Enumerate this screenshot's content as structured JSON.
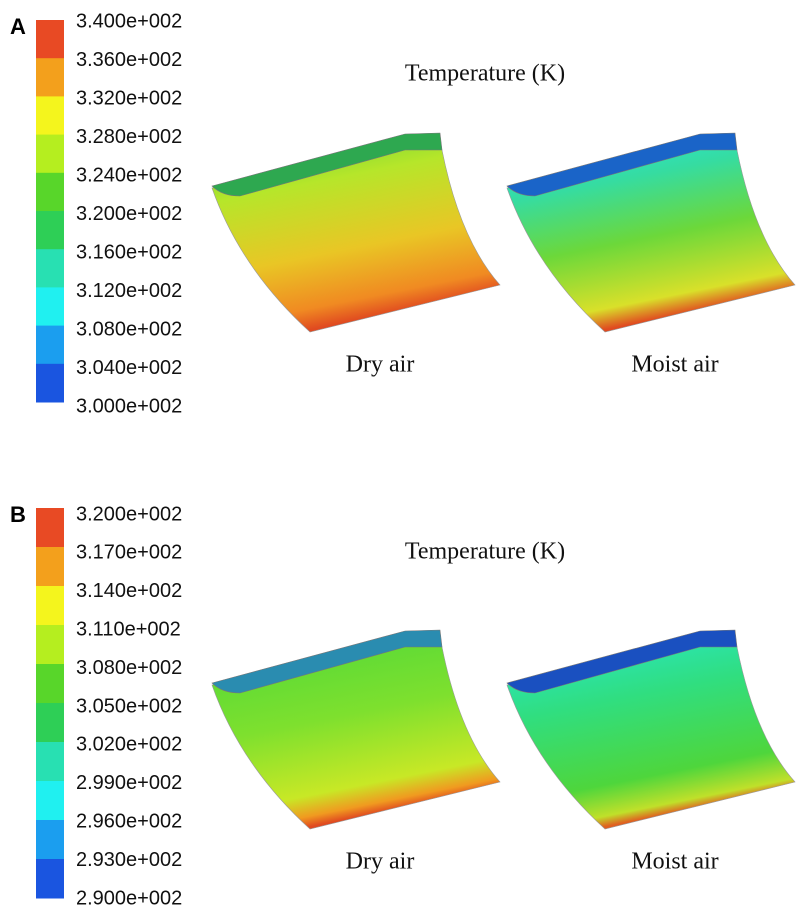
{
  "panels": [
    {
      "label": "A",
      "title": "Temperature (K)",
      "colorbar": {
        "labels": [
          "3.400e+002",
          "3.360e+002",
          "3.320e+002",
          "3.280e+002",
          "3.240e+002",
          "3.200e+002",
          "3.160e+002",
          "3.120e+002",
          "3.080e+002",
          "3.040e+002",
          "3.000e+002"
        ],
        "colors": [
          "#e84a24",
          "#f3a01c",
          "#f4f51d",
          "#b5ee1f",
          "#58d62a",
          "#2ecf56",
          "#28e0b2",
          "#20f0f0",
          "#1b9eef",
          "#1a55e0"
        ]
      },
      "captions": [
        "Dry air",
        "Moist air"
      ]
    },
    {
      "label": "B",
      "title": "Temperature (K)",
      "colorbar": {
        "labels": [
          "3.200e+002",
          "3.170e+002",
          "3.140e+002",
          "3.110e+002",
          "3.080e+002",
          "3.050e+002",
          "3.020e+002",
          "2.990e+002",
          "2.960e+002",
          "2.930e+002",
          "2.900e+002"
        ],
        "colors": [
          "#e84a24",
          "#f3a01c",
          "#f4f51d",
          "#b5ee1f",
          "#58d62a",
          "#2ecf56",
          "#28e0b2",
          "#20f0f0",
          "#1b9eef",
          "#1a55e0"
        ]
      },
      "captions": [
        "Dry air",
        "Moist air"
      ]
    }
  ]
}
